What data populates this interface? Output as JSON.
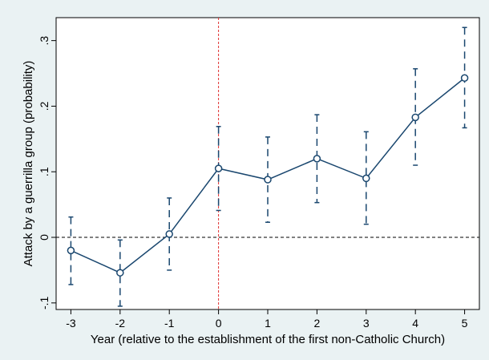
{
  "chart_data": {
    "type": "line",
    "title": "",
    "xlabel": "Year (relative to the establishment of the first non-Catholic Church)",
    "ylabel": "Attack by a guerrilla group (probability)",
    "x_ticks": [
      -3,
      -2,
      -1,
      0,
      1,
      2,
      3,
      4,
      5
    ],
    "x_tick_labels": [
      "-3",
      "-2",
      "-1",
      "0",
      "1",
      "2",
      "3",
      "4",
      "5"
    ],
    "y_ticks": [
      -0.1,
      0,
      0.1,
      0.2,
      0.3
    ],
    "y_tick_labels": [
      "-.1",
      "0",
      ".1",
      ".2",
      ".3"
    ],
    "xlim": [
      -3.3,
      5.3
    ],
    "ylim": [
      -0.11,
      0.335
    ],
    "grid": false,
    "series": [
      {
        "name": "",
        "x": [
          -3,
          -2,
          -1,
          0,
          1,
          2,
          3,
          4,
          5
        ],
        "y": [
          -0.02,
          -0.054,
          0.005,
          0.105,
          0.088,
          0.12,
          0.09,
          0.183,
          0.243
        ],
        "ci_low": [
          -0.072,
          -0.105,
          -0.05,
          0.041,
          0.023,
          0.053,
          0.02,
          0.11,
          0.167
        ],
        "ci_high": [
          0.031,
          -0.004,
          0.06,
          0.169,
          0.153,
          0.187,
          0.161,
          0.257,
          0.32
        ]
      }
    ],
    "reference_lines": [
      {
        "axis": "y",
        "value": 0,
        "style": "dashed",
        "color": "#000000"
      },
      {
        "axis": "x",
        "value": 0,
        "style": "dashed",
        "color": "#e03030"
      }
    ],
    "colors": {
      "background": "#eaf2f3",
      "plot_background": "#ffffff",
      "series": "#1a476f"
    }
  }
}
